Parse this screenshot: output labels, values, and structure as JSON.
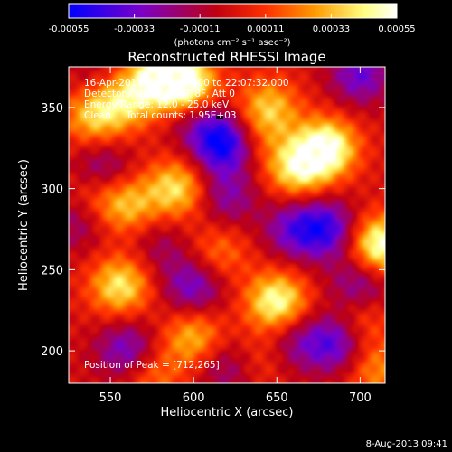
{
  "chart_data": {
    "type": "heatmap",
    "title": "Reconstructed RHESSI Image",
    "xlabel": "Heliocentric X (arcsec)",
    "ylabel": "Heliocentric Y (arcsec)",
    "xlim": [
      525,
      715
    ],
    "ylim": [
      180,
      375
    ],
    "xticks": [
      550,
      600,
      650,
      700
    ],
    "yticks": [
      200,
      250,
      300,
      350
    ],
    "colorbar": {
      "label": "(photons cm⁻² s⁻¹ asec⁻²)",
      "range": [
        -0.00055,
        0.00055
      ],
      "ticks": [
        "-0.00055",
        "-0.00033",
        "-0.00011",
        "0.00011",
        "0.00033",
        "0.00055"
      ],
      "colors": [
        "#0000ff",
        "#7a00c8",
        "#dc0000",
        "#ff8800",
        "#ffff80",
        "#ffffff"
      ]
    },
    "info_lines": [
      "16-Apr-2011 22:06:52.000 to 22:07:32.000",
      "Detectors: 4F 5F 6F 7F 8F, Att 0",
      "Energy Range: 12.0 - 25.0 keV",
      "Clean     Total counts: 1.95E+03"
    ],
    "peak_label": "Position of Peak = [712,265]",
    "peak": [
      712,
      265
    ],
    "timestamp": "8-Aug-2013 09:41",
    "blobs": [
      {
        "x": 582,
        "y": 370,
        "v": 0.00055
      },
      {
        "x": 597,
        "y": 362,
        "v": 0.0005
      },
      {
        "x": 560,
        "y": 355,
        "v": 0.00035
      },
      {
        "x": 645,
        "y": 350,
        "v": 0.00033
      },
      {
        "x": 540,
        "y": 345,
        "v": 0.00035
      },
      {
        "x": 680,
        "y": 325,
        "v": 0.00055
      },
      {
        "x": 662,
        "y": 312,
        "v": 0.00042
      },
      {
        "x": 640,
        "y": 332,
        "v": 0.00012
      },
      {
        "x": 560,
        "y": 290,
        "v": 0.00033
      },
      {
        "x": 590,
        "y": 300,
        "v": 0.0004
      },
      {
        "x": 540,
        "y": 298,
        "v": 0.00022
      },
      {
        "x": 712,
        "y": 265,
        "v": 0.00055
      },
      {
        "x": 615,
        "y": 260,
        "v": 0.00022
      },
      {
        "x": 556,
        "y": 240,
        "v": 0.00042
      },
      {
        "x": 650,
        "y": 230,
        "v": 0.0005
      },
      {
        "x": 700,
        "y": 220,
        "v": 0.00022
      },
      {
        "x": 600,
        "y": 208,
        "v": 0.00033
      },
      {
        "x": 640,
        "y": 195,
        "v": 0.00015
      },
      {
        "x": 575,
        "y": 185,
        "v": 0.00022
      },
      {
        "x": 710,
        "y": 188,
        "v": 0.00025
      },
      {
        "x": 617,
        "y": 328,
        "v": -0.00055
      },
      {
        "x": 600,
        "y": 346,
        "v": -0.00022
      },
      {
        "x": 545,
        "y": 310,
        "v": -0.0003
      },
      {
        "x": 530,
        "y": 280,
        "v": -0.0002
      },
      {
        "x": 620,
        "y": 295,
        "v": -0.00025
      },
      {
        "x": 680,
        "y": 275,
        "v": -0.0004
      },
      {
        "x": 660,
        "y": 275,
        "v": -0.0003
      },
      {
        "x": 600,
        "y": 240,
        "v": -0.00033
      },
      {
        "x": 700,
        "y": 240,
        "v": -0.0003
      },
      {
        "x": 685,
        "y": 205,
        "v": -0.00038
      },
      {
        "x": 660,
        "y": 205,
        "v": -0.00022
      },
      {
        "x": 560,
        "y": 200,
        "v": -0.00033
      },
      {
        "x": 620,
        "y": 190,
        "v": -0.00022
      },
      {
        "x": 700,
        "y": 370,
        "v": -0.00033
      },
      {
        "x": 540,
        "y": 370,
        "v": -0.00011
      },
      {
        "x": 580,
        "y": 265,
        "v": -0.00015
      }
    ]
  }
}
